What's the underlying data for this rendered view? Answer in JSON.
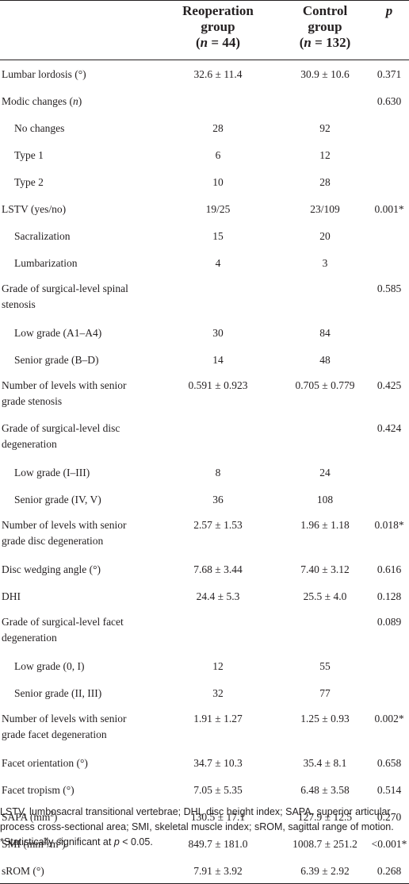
{
  "header": {
    "col1_line1": "Reoperation",
    "col1_line2": "group",
    "col1_line3": "(n = 44)",
    "col2_line1": "Control",
    "col2_line2": "group",
    "col2_line3": "(n = 132)",
    "col3": "p"
  },
  "rows": [
    {
      "label": "Lumbar lordosis (°)",
      "reop": "32.6 ± 11.4",
      "control": "30.9 ± 10.6",
      "p": "0.371"
    },
    {
      "label": "Modic changes (n)",
      "reop": "",
      "control": "",
      "p": "0.630"
    },
    {
      "label": "No changes",
      "reop": "28",
      "control": "92",
      "p": ""
    },
    {
      "label": "Type 1",
      "reop": "6",
      "control": "12",
      "p": ""
    },
    {
      "label": "Type 2",
      "reop": "10",
      "control": "28",
      "p": ""
    },
    {
      "label": "LSTV (yes/no)",
      "reop": "19/25",
      "control": "23/109",
      "p": "0.001*"
    },
    {
      "label": "Sacralization",
      "reop": "15",
      "control": "20",
      "p": ""
    },
    {
      "label": "Lumbarization",
      "reop": "4",
      "control": "3",
      "p": ""
    },
    {
      "label": "Grade of surgical-level spinal stenosis",
      "reop": "",
      "control": "",
      "p": "0.585"
    },
    {
      "label": "Low grade (A1–A4)",
      "reop": "30",
      "control": "84",
      "p": ""
    },
    {
      "label": "Senior grade (B–D)",
      "reop": "14",
      "control": "48",
      "p": ""
    },
    {
      "label": "Number of levels with senior grade stenosis",
      "reop": "0.591 ± 0.923",
      "control": "0.705 ± 0.779",
      "p": "0.425"
    },
    {
      "label": "Grade of surgical-level disc degeneration",
      "reop": "",
      "control": "",
      "p": "0.424"
    },
    {
      "label": "Low grade (I–III)",
      "reop": "8",
      "control": "24",
      "p": ""
    },
    {
      "label": "Senior grade (IV, V)",
      "reop": "36",
      "control": "108",
      "p": ""
    },
    {
      "label": "Number of levels with senior grade disc degeneration",
      "reop": "2.57 ± 1.53",
      "control": "1.96 ± 1.18",
      "p": "0.018*"
    },
    {
      "label": "Disc wedging angle (°)",
      "reop": "7.68 ± 3.44",
      "control": "7.40 ± 3.12",
      "p": "0.616"
    },
    {
      "label": "DHI",
      "reop": "24.4 ± 5.3",
      "control": "25.5 ± 4.0",
      "p": "0.128"
    },
    {
      "label": "Grade of surgical-level facet degeneration",
      "reop": "",
      "control": "",
      "p": "0.089"
    },
    {
      "label": "Low grade (0, I)",
      "reop": "12",
      "control": "55",
      "p": ""
    },
    {
      "label": "Senior grade (II, III)",
      "reop": "32",
      "control": "77",
      "p": ""
    },
    {
      "label": "Number of levels with senior grade facet degeneration",
      "reop": "1.91 ± 1.27",
      "control": "1.25 ± 0.93",
      "p": "0.002*"
    },
    {
      "label": "Facet orientation (°)",
      "reop": "34.7 ± 10.3",
      "control": "35.4 ± 8.1",
      "p": "0.658"
    },
    {
      "label": "Facet tropism (°)",
      "reop": "7.05 ± 5.35",
      "control": "6.48 ± 3.58",
      "p": "0.514"
    },
    {
      "label": "SAPA (mm2)",
      "reop": "130.5 ± 17.1",
      "control": "127.9 ± 12.5",
      "p": "0.270"
    },
    {
      "label": "SMI (mm2/m2)",
      "reop": "849.7 ± 181.0",
      "control": "1008.7 ± 251.2",
      "p": "<0.001*"
    },
    {
      "label": "sROM (°)",
      "reop": "7.91 ± 3.92",
      "control": "6.39 ± 2.92",
      "p": "0.268"
    }
  ],
  "footnote": {
    "abbreviations": "LSTV, lumbosacral transitional vertebrae; DHI, disc height index; SAPA, superior articular process cross-sectional area; SMI, skeletal muscle index; sROM, sagittal range of motion.",
    "significance": "*Statistically significant at p < 0.05."
  }
}
